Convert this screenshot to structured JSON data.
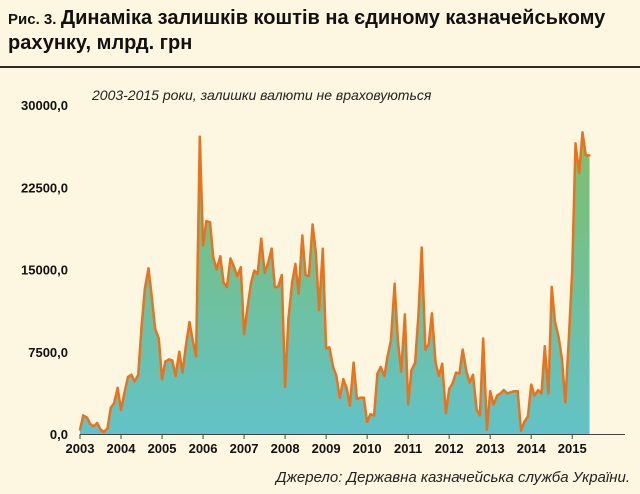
{
  "header": {
    "prefix": "Рис. 3.",
    "title": "Динаміка залишків коштів на єдиному казначейському рахунку, млрд. грн"
  },
  "footer": {
    "source": "Джерело: Державна казначейська служба України."
  },
  "colors": {
    "background": "#fdf6e0",
    "line": "#e8731f",
    "fill_top": "#7fbf6a",
    "fill_bottom": "#62c2c8"
  },
  "chart_data": {
    "type": "area",
    "subtitle": "2003-2015 роки, залишки валюти не враховуються",
    "xlabel": "",
    "ylabel": "",
    "ylim": [
      0,
      30000
    ],
    "yticks": [
      0,
      7500,
      15000,
      22500,
      30000
    ],
    "ytick_labels": [
      "0,0",
      "7500,0",
      "15000,0",
      "22500,0",
      "30000,0"
    ],
    "xticks": [
      "2003",
      "2004",
      "2005",
      "2006",
      "2007",
      "2008",
      "2009",
      "2010",
      "2011",
      "2012",
      "2013",
      "2014",
      "2015"
    ],
    "xlim": [
      2003.0,
      2015.75
    ],
    "grid": false,
    "series": [
      {
        "values": [
          [
            2003.0,
            400
          ],
          [
            2003.08,
            1700
          ],
          [
            2003.17,
            1500
          ],
          [
            2003.25,
            900
          ],
          [
            2003.33,
            700
          ],
          [
            2003.42,
            1000
          ],
          [
            2003.5,
            400
          ],
          [
            2003.58,
            200
          ],
          [
            2003.67,
            500
          ],
          [
            2003.75,
            2400
          ],
          [
            2003.83,
            2800
          ],
          [
            2003.92,
            4200
          ],
          [
            2004.0,
            2200
          ],
          [
            2004.08,
            3700
          ],
          [
            2004.17,
            5200
          ],
          [
            2004.25,
            5400
          ],
          [
            2004.33,
            4800
          ],
          [
            2004.42,
            5400
          ],
          [
            2004.5,
            9700
          ],
          [
            2004.58,
            13200
          ],
          [
            2004.67,
            15100
          ],
          [
            2004.75,
            12500
          ],
          [
            2004.83,
            9600
          ],
          [
            2004.92,
            8700
          ],
          [
            2005.0,
            5000
          ],
          [
            2005.08,
            6600
          ],
          [
            2005.17,
            6800
          ],
          [
            2005.25,
            6700
          ],
          [
            2005.33,
            5300
          ],
          [
            2005.42,
            7500
          ],
          [
            2005.5,
            5600
          ],
          [
            2005.58,
            8000
          ],
          [
            2005.67,
            10200
          ],
          [
            2005.75,
            8500
          ],
          [
            2005.83,
            7100
          ],
          [
            2005.92,
            27100
          ],
          [
            2006.0,
            17200
          ],
          [
            2006.08,
            19400
          ],
          [
            2006.17,
            19300
          ],
          [
            2006.25,
            16100
          ],
          [
            2006.33,
            15000
          ],
          [
            2006.42,
            16200
          ],
          [
            2006.5,
            13800
          ],
          [
            2006.58,
            13400
          ],
          [
            2006.67,
            16000
          ],
          [
            2006.75,
            15300
          ],
          [
            2006.83,
            14400
          ],
          [
            2006.92,
            15200
          ],
          [
            2007.0,
            9100
          ],
          [
            2007.08,
            11500
          ],
          [
            2007.17,
            13800
          ],
          [
            2007.25,
            14900
          ],
          [
            2007.33,
            14600
          ],
          [
            2007.42,
            17800
          ],
          [
            2007.5,
            14700
          ],
          [
            2007.58,
            15500
          ],
          [
            2007.67,
            16900
          ],
          [
            2007.75,
            13400
          ],
          [
            2007.83,
            13400
          ],
          [
            2007.92,
            14500
          ],
          [
            2008.0,
            4300
          ],
          [
            2008.08,
            10500
          ],
          [
            2008.17,
            13800
          ],
          [
            2008.25,
            15500
          ],
          [
            2008.33,
            12800
          ],
          [
            2008.42,
            18100
          ],
          [
            2008.5,
            14500
          ],
          [
            2008.58,
            14400
          ],
          [
            2008.67,
            19100
          ],
          [
            2008.75,
            16500
          ],
          [
            2008.83,
            11300
          ],
          [
            2008.92,
            16900
          ],
          [
            2009.0,
            7800
          ],
          [
            2009.08,
            7900
          ],
          [
            2009.17,
            6100
          ],
          [
            2009.25,
            5300
          ],
          [
            2009.33,
            3300
          ],
          [
            2009.42,
            5000
          ],
          [
            2009.5,
            4200
          ],
          [
            2009.58,
            2600
          ],
          [
            2009.67,
            6500
          ],
          [
            2009.75,
            3200
          ],
          [
            2009.83,
            3300
          ],
          [
            2009.92,
            3300
          ],
          [
            2010.0,
            1100
          ],
          [
            2010.08,
            1800
          ],
          [
            2010.17,
            1700
          ],
          [
            2010.25,
            5500
          ],
          [
            2010.33,
            6100
          ],
          [
            2010.42,
            5300
          ],
          [
            2010.5,
            7100
          ],
          [
            2010.58,
            8500
          ],
          [
            2010.67,
            13700
          ],
          [
            2010.75,
            8500
          ],
          [
            2010.83,
            5700
          ],
          [
            2010.92,
            10900
          ],
          [
            2011.0,
            2700
          ],
          [
            2011.08,
            5800
          ],
          [
            2011.17,
            6500
          ],
          [
            2011.25,
            10800
          ],
          [
            2011.33,
            17000
          ],
          [
            2011.42,
            7700
          ],
          [
            2011.5,
            8200
          ],
          [
            2011.58,
            11000
          ],
          [
            2011.67,
            6500
          ],
          [
            2011.75,
            5300
          ],
          [
            2011.83,
            6400
          ],
          [
            2011.92,
            1900
          ],
          [
            2012.0,
            4100
          ],
          [
            2012.08,
            4600
          ],
          [
            2012.17,
            5600
          ],
          [
            2012.25,
            5500
          ],
          [
            2012.33,
            7700
          ],
          [
            2012.42,
            5700
          ],
          [
            2012.5,
            4700
          ],
          [
            2012.58,
            5400
          ],
          [
            2012.67,
            2200
          ],
          [
            2012.75,
            1700
          ],
          [
            2012.83,
            8700
          ],
          [
            2012.92,
            400
          ],
          [
            2013.0,
            3900
          ],
          [
            2013.08,
            2700
          ],
          [
            2013.17,
            3500
          ],
          [
            2013.25,
            3700
          ],
          [
            2013.33,
            4000
          ],
          [
            2013.42,
            3700
          ],
          [
            2013.5,
            3800
          ],
          [
            2013.58,
            3900
          ],
          [
            2013.67,
            3900
          ],
          [
            2013.75,
            300
          ],
          [
            2013.83,
            1100
          ],
          [
            2013.92,
            1600
          ],
          [
            2014.0,
            4500
          ],
          [
            2014.08,
            3500
          ],
          [
            2014.17,
            4000
          ],
          [
            2014.25,
            3700
          ],
          [
            2014.33,
            8000
          ],
          [
            2014.42,
            3700
          ],
          [
            2014.5,
            13400
          ],
          [
            2014.58,
            10200
          ],
          [
            2014.67,
            8800
          ],
          [
            2014.75,
            6800
          ],
          [
            2014.83,
            2900
          ],
          [
            2014.92,
            9000
          ],
          [
            2015.0,
            14900
          ],
          [
            2015.08,
            26500
          ],
          [
            2015.17,
            23800
          ],
          [
            2015.25,
            27500
          ],
          [
            2015.33,
            25400
          ],
          [
            2015.42,
            25400
          ]
        ]
      }
    ]
  }
}
